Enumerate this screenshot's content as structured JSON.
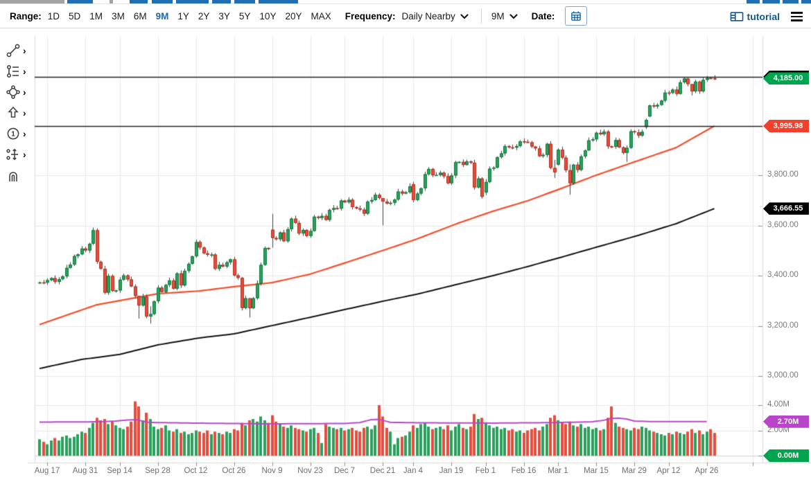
{
  "toolbar": {
    "range_label": "Range:",
    "range_options": [
      "1D",
      "5D",
      "1M",
      "3M",
      "6M",
      "9M",
      "1Y",
      "2Y",
      "3Y",
      "5Y",
      "10Y",
      "20Y",
      "MAX"
    ],
    "range_selected": "9M",
    "frequency_label": "Frequency:",
    "frequency_value": "Daily Nearby",
    "period_value": "9M",
    "date_label": "Date:",
    "tutorial_label": "tutorial"
  },
  "sidebar": {
    "tools": [
      {
        "icon": "trendline-icon",
        "has_submenu": true
      },
      {
        "icon": "fibonacci-levels-icon",
        "has_submenu": true
      },
      {
        "icon": "shapes-icon",
        "has_submenu": true
      },
      {
        "icon": "arrow-marker-icon",
        "has_submenu": true
      },
      {
        "icon": "annotation-number-icon",
        "has_submenu": true
      },
      {
        "icon": "measure-icon",
        "has_submenu": true
      },
      {
        "icon": "magnet-icon",
        "has_submenu": false
      }
    ]
  },
  "chart_data": {
    "type": "candlestick+volume",
    "x_ticks": [
      {
        "label": "Aug 17",
        "day": 2
      },
      {
        "label": "Aug 31",
        "day": 12
      },
      {
        "label": "Sep 14",
        "day": 21
      },
      {
        "label": "Sep 28",
        "day": 31
      },
      {
        "label": "Oct 12",
        "day": 41
      },
      {
        "label": "Oct 26",
        "day": 51
      },
      {
        "label": "Nov 9",
        "day": 61
      },
      {
        "label": "Nov 23",
        "day": 71
      },
      {
        "label": "Dec 7",
        "day": 80
      },
      {
        "label": "Dec 21",
        "day": 90
      },
      {
        "label": "Jan 4",
        "day": 98
      },
      {
        "label": "Jan 19",
        "day": 108
      },
      {
        "label": "Feb 1",
        "day": 117
      },
      {
        "label": "Feb 16",
        "day": 127
      },
      {
        "label": "Mar 1",
        "day": 136
      },
      {
        "label": "Mar 15",
        "day": 146
      },
      {
        "label": "Mar 29",
        "day": 156
      },
      {
        "label": "Apr 12",
        "day": 165
      },
      {
        "label": "Apr 26",
        "day": 175
      },
      {
        "label": "",
        "day": 187
      }
    ],
    "price_axis": {
      "ticks": [
        {
          "label": "3,800.00",
          "value": 3800
        },
        {
          "label": "3,600.00",
          "value": 3600
        },
        {
          "label": "3,400.00",
          "value": 3400
        },
        {
          "label": "3,200.00",
          "value": 3200
        },
        {
          "label": "3,000.00",
          "value": 3000
        }
      ]
    },
    "volume_axis": {
      "ticks": [
        {
          "label": "4.00M",
          "value": 4
        },
        {
          "label": "2.00M",
          "value": 2
        },
        {
          "label": "0.00M",
          "value": 0
        }
      ]
    },
    "closes": [
      3373,
      3372,
      3382,
      3390,
      3375,
      3386,
      3397,
      3431,
      3444,
      3478,
      3485,
      3508,
      3500,
      3527,
      3581,
      3455,
      3427,
      3332,
      3399,
      3339,
      3341,
      3384,
      3401,
      3385,
      3357,
      3319,
      3281,
      3316,
      3237,
      3247,
      3298,
      3352,
      3335,
      3363,
      3381,
      3348,
      3409,
      3361,
      3419,
      3447,
      3477,
      3534,
      3512,
      3489,
      3483,
      3484,
      3427,
      3443,
      3436,
      3453,
      3465,
      3401,
      3391,
      3271,
      3310,
      3270,
      3310,
      3369,
      3443,
      3510,
      3509,
      3550,
      3545,
      3572,
      3537,
      3585,
      3627,
      3610,
      3568,
      3582,
      3558,
      3578,
      3635,
      3630,
      3638,
      3622,
      3662,
      3669,
      3667,
      3699,
      3692,
      3702,
      3673,
      3668,
      3663,
      3647,
      3695,
      3701,
      3722,
      3709,
      3695,
      3687,
      3690,
      3703,
      3735,
      3727,
      3732,
      3756,
      3701,
      3727,
      3748,
      3804,
      3825,
      3800,
      3801,
      3810,
      3796,
      3768,
      3799,
      3852,
      3853,
      3841,
      3855,
      3850,
      3751,
      3787,
      3714,
      3773,
      3826,
      3830,
      3872,
      3887,
      3916,
      3911,
      3910,
      3916,
      3935,
      3933,
      3931,
      3914,
      3907,
      3876,
      3881,
      3925,
      3829,
      3811,
      3902,
      3870,
      3820,
      3768,
      3842,
      3821,
      3875,
      3899,
      3939,
      3943,
      3969,
      3963,
      3974,
      3915,
      3913,
      3940,
      3911,
      3889,
      3909,
      3975,
      3971,
      3958,
      3973,
      4020,
      4078,
      4074,
      4080,
      4097,
      4129,
      4128,
      4141,
      4124,
      4170,
      4185,
      4163,
      4134,
      4173,
      4134,
      4180,
      4187,
      4186,
      4185
    ],
    "first_open": 3370,
    "open_overrides": {
      "61": 3583,
      "98": 3764,
      "117": 3731,
      "136": 3842,
      "159": 3992,
      "160": 4034
    },
    "wick_overrides": {
      "26": [
        3319,
        3229
      ],
      "29": [
        3278,
        3209
      ],
      "55": [
        3304,
        3233
      ],
      "61": [
        3646,
        3511
      ],
      "90": [
        3705,
        3600
      ],
      "135": [
        3861,
        3789
      ],
      "139": [
        3843,
        3723
      ],
      "154": [
        3919,
        3853
      ],
      "171": [
        4163,
        4118
      ]
    },
    "volumes": [
      1.3,
      1.1,
      0.9,
      1.2,
      1.4,
      1.2,
      1.5,
      1.6,
      1.4,
      1.5,
      1.7,
      1.9,
      1.8,
      2.2,
      2.6,
      3.0,
      2.8,
      2.9,
      2.5,
      2.7,
      2.4,
      2.2,
      2.1,
      2.3,
      2.7,
      4.3,
      3.9,
      2.8,
      3.4,
      2.9,
      2.3,
      2.1,
      2.2,
      2.4,
      2.0,
      1.9,
      2.1,
      1.8,
      1.9,
      1.7,
      1.8,
      2.0,
      1.9,
      1.8,
      2.0,
      1.7,
      1.9,
      1.8,
      1.7,
      1.9,
      1.8,
      2.1,
      2.0,
      2.6,
      2.4,
      2.8,
      2.9,
      2.7,
      3.1,
      2.8,
      2.6,
      3.2,
      2.7,
      2.5,
      2.3,
      2.2,
      2.4,
      2.2,
      2.1,
      2.0,
      1.9,
      2.1,
      2.2,
      1.8,
      1.0,
      2.5,
      2.3,
      2.2,
      2.1,
      2.2,
      2.0,
      2.1,
      2.2,
      2.0,
      1.9,
      2.2,
      2.3,
      2.1,
      2.4,
      4.0,
      3.1,
      2.2,
      1.9,
      0.9,
      1.4,
      1.5,
      1.6,
      1.9,
      2.4,
      2.2,
      2.5,
      2.6,
      2.3,
      2.1,
      2.2,
      2.3,
      2.1,
      2.4,
      2.0,
      2.3,
      2.5,
      2.2,
      2.1,
      2.3,
      3.3,
      2.9,
      3.0,
      2.6,
      2.4,
      2.2,
      2.3,
      2.1,
      2.2,
      2.0,
      2.1,
      1.9,
      2.0,
      1.8,
      2.0,
      2.1,
      2.2,
      2.0,
      2.3,
      2.5,
      3.0,
      3.2,
      2.8,
      2.6,
      2.5,
      2.7,
      2.4,
      2.3,
      2.5,
      2.2,
      2.3,
      2.1,
      2.2,
      2.0,
      2.1,
      3.0,
      3.9,
      2.6,
      2.3,
      2.2,
      2.1,
      2.0,
      2.2,
      2.1,
      2.3,
      2.2,
      2.0,
      1.9,
      1.8,
      1.7,
      1.6,
      1.8,
      1.7,
      1.9,
      1.8,
      1.7,
      1.9,
      2.1,
      1.8,
      2.0,
      1.7,
      1.9,
      2.1,
      1.8
    ],
    "ma_fast": {
      "name": "fast-moving-average",
      "color": "#f84b2a",
      "anchors": [
        [
          0,
          3205
        ],
        [
          15,
          3284
        ],
        [
          31,
          3328
        ],
        [
          42,
          3339
        ],
        [
          51,
          3356
        ],
        [
          61,
          3372
        ],
        [
          71,
          3406
        ],
        [
          81,
          3455
        ],
        [
          91,
          3505
        ],
        [
          99,
          3546
        ],
        [
          110,
          3610
        ],
        [
          119,
          3657
        ],
        [
          128,
          3698
        ],
        [
          137,
          3748
        ],
        [
          146,
          3800
        ],
        [
          157,
          3858
        ],
        [
          167,
          3910
        ],
        [
          177,
          3996
        ]
      ]
    },
    "ma_slow": {
      "name": "slow-moving-average",
      "color": "#111111",
      "anchors": [
        [
          0,
          3030
        ],
        [
          11,
          3066
        ],
        [
          21,
          3086
        ],
        [
          31,
          3124
        ],
        [
          42,
          3152
        ],
        [
          51,
          3168
        ],
        [
          61,
          3201
        ],
        [
          71,
          3234
        ],
        [
          81,
          3268
        ],
        [
          91,
          3301
        ],
        [
          99,
          3326
        ],
        [
          110,
          3367
        ],
        [
          119,
          3400
        ],
        [
          128,
          3436
        ],
        [
          137,
          3474
        ],
        [
          146,
          3513
        ],
        [
          157,
          3560
        ],
        [
          167,
          3607
        ],
        [
          177,
          3667
        ]
      ]
    },
    "volume_ma": {
      "name": "volume-moving-average",
      "color": "#b845c8",
      "anchors": [
        [
          0,
          2.66
        ],
        [
          15,
          2.68
        ],
        [
          20,
          2.74
        ],
        [
          23,
          2.82
        ],
        [
          25,
          2.84
        ],
        [
          26,
          2.83
        ],
        [
          27,
          2.72
        ],
        [
          29,
          2.63
        ],
        [
          40,
          2.58
        ],
        [
          60,
          2.52
        ],
        [
          80,
          2.55
        ],
        [
          84,
          2.62
        ],
        [
          87,
          2.85
        ],
        [
          89,
          2.88
        ],
        [
          90,
          2.8
        ],
        [
          92,
          2.64
        ],
        [
          100,
          2.6
        ],
        [
          120,
          2.58
        ],
        [
          135,
          2.62
        ],
        [
          145,
          2.68
        ],
        [
          148,
          2.8
        ],
        [
          150,
          2.95
        ],
        [
          152,
          2.97
        ],
        [
          154,
          2.9
        ],
        [
          156,
          2.74
        ],
        [
          160,
          2.7
        ],
        [
          175,
          2.7
        ]
      ]
    },
    "drawn_lines": [
      4192,
      3997
    ],
    "badges": {
      "price": [
        {
          "label": "",
          "value": 4192,
          "color": "#000000",
          "name": "hidden-line-badge"
        },
        {
          "label": "4,185.00",
          "value": 4185,
          "color": "#00a44f",
          "name": "last-price-badge"
        },
        {
          "label": "3,995.98",
          "value": 3995.98,
          "color": "#f2402d",
          "name": "fast-ma-badge"
        },
        {
          "label": "3,666.55",
          "value": 3666.55,
          "color": "#000000",
          "name": "slow-ma-badge"
        }
      ],
      "volume": [
        {
          "label": "2.70M",
          "value": 2.7,
          "color": "#b845c8",
          "name": "volume-ma-badge"
        },
        {
          "label": "0.00M",
          "value": 0,
          "color": "#00a44f",
          "name": "current-volume-badge"
        }
      ]
    },
    "colors": {
      "up": "#2aa15c",
      "up_border": "#0c7a3b",
      "down": "#e74c3c",
      "down_border": "#b52e1f",
      "wick": "#3c3c3c",
      "grid": "#e8e8e8",
      "axis_line": "#d9d9d9",
      "tick": "#8c8c8c",
      "drawn_line": "#222222"
    }
  }
}
